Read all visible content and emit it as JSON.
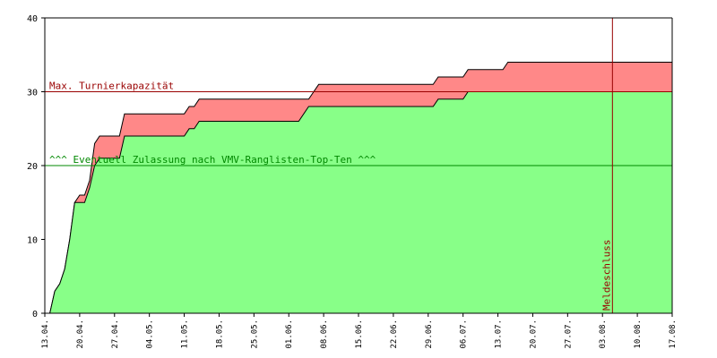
{
  "chart_data": {
    "type": "area",
    "title": "",
    "xlabel": "",
    "ylabel": "",
    "ylim": [
      0,
      40
    ],
    "yticks": [
      0,
      10,
      20,
      30,
      40
    ],
    "grid": false,
    "x_range": [
      "2015-04-13",
      "2015-08-17"
    ],
    "x_ticks": [
      "13.04.",
      "20.04.",
      "27.04.",
      "04.05.",
      "11.05.",
      "18.05.",
      "25.05.",
      "01.06.",
      "08.06.",
      "15.06.",
      "22.06.",
      "29.06.",
      "06.07.",
      "13.07.",
      "20.07.",
      "27.07.",
      "03.08.",
      "10.08.",
      "17.08."
    ],
    "series": [
      {
        "role": "total",
        "color": "#ff8888",
        "points": [
          [
            "2015-04-14",
            0
          ],
          [
            "2015-04-15",
            3
          ],
          [
            "2015-04-16",
            4
          ],
          [
            "2015-04-17",
            6
          ],
          [
            "2015-04-18",
            10
          ],
          [
            "2015-04-19",
            15
          ],
          [
            "2015-04-20",
            16
          ],
          [
            "2015-04-21",
            16
          ],
          [
            "2015-04-22",
            18
          ],
          [
            "2015-04-23",
            23
          ],
          [
            "2015-04-24",
            24
          ],
          [
            "2015-04-27",
            24
          ],
          [
            "2015-04-28",
            24
          ],
          [
            "2015-04-29",
            27
          ],
          [
            "2015-05-11",
            27
          ],
          [
            "2015-05-12",
            28
          ],
          [
            "2015-05-13",
            28
          ],
          [
            "2015-05-14",
            29
          ],
          [
            "2015-06-05",
            29
          ],
          [
            "2015-06-07",
            31
          ],
          [
            "2015-06-30",
            31
          ],
          [
            "2015-07-01",
            32
          ],
          [
            "2015-07-06",
            32
          ],
          [
            "2015-07-07",
            33
          ],
          [
            "2015-07-14",
            33
          ],
          [
            "2015-07-15",
            34
          ],
          [
            "2015-08-17",
            34
          ]
        ]
      },
      {
        "role": "admitted",
        "color": "#88ff88",
        "points": [
          [
            "2015-04-14",
            0
          ],
          [
            "2015-04-15",
            3
          ],
          [
            "2015-04-16",
            4
          ],
          [
            "2015-04-17",
            6
          ],
          [
            "2015-04-18",
            10
          ],
          [
            "2015-04-19",
            15
          ],
          [
            "2015-04-21",
            15
          ],
          [
            "2015-04-22",
            17
          ],
          [
            "2015-04-23",
            20
          ],
          [
            "2015-04-24",
            21
          ],
          [
            "2015-04-27",
            21
          ],
          [
            "2015-04-28",
            21
          ],
          [
            "2015-04-29",
            24
          ],
          [
            "2015-05-11",
            24
          ],
          [
            "2015-05-12",
            25
          ],
          [
            "2015-05-13",
            25
          ],
          [
            "2015-05-14",
            26
          ],
          [
            "2015-06-03",
            26
          ],
          [
            "2015-06-05",
            28
          ],
          [
            "2015-06-30",
            28
          ],
          [
            "2015-07-01",
            29
          ],
          [
            "2015-07-06",
            29
          ],
          [
            "2015-07-07",
            30
          ],
          [
            "2015-08-17",
            30
          ]
        ]
      }
    ],
    "reference_lines": [
      {
        "axis": "y",
        "value": 30,
        "label": "Max. Turnierkapazität",
        "color": "#990000"
      },
      {
        "axis": "y",
        "value": 20,
        "label": "^^^ Eventuell Zulassung nach VMV-Ranglisten-Top-Ten ^^^",
        "color": "#008800"
      },
      {
        "axis": "x",
        "value": "2015-08-05",
        "label": "Meldeschluss",
        "color": "#990000"
      }
    ]
  }
}
